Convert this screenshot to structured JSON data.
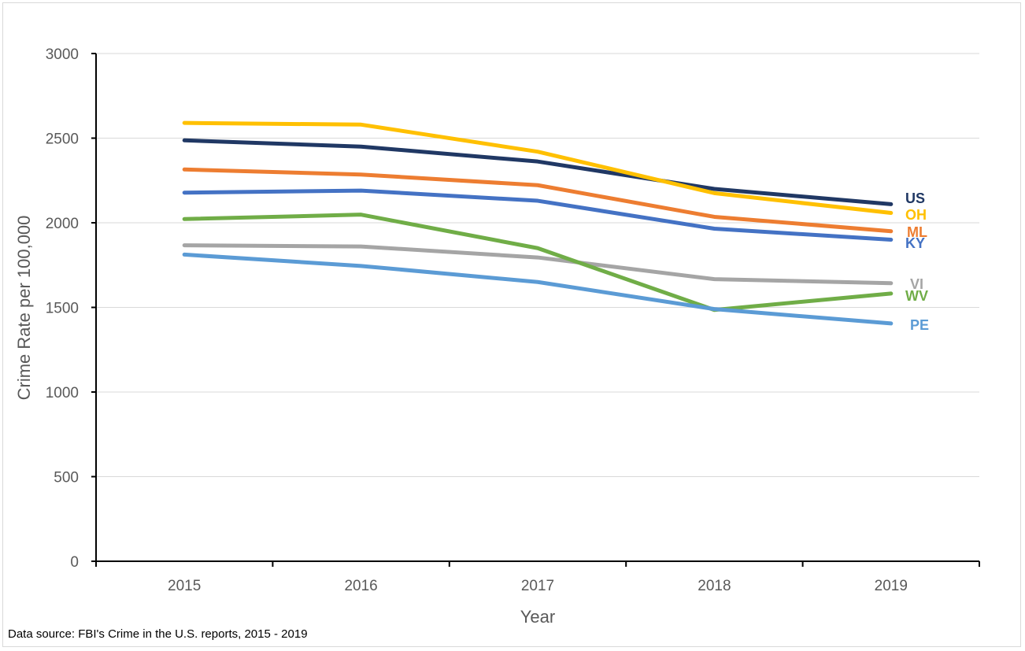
{
  "chart_data": {
    "type": "line",
    "title": "",
    "xlabel": "Year",
    "ylabel": "Crime Rate per 100,000",
    "x": [
      "2015",
      "2016",
      "2017",
      "2018",
      "2019"
    ],
    "ylim": [
      0,
      3000
    ],
    "yticks": [
      "0",
      "500",
      "1000",
      "1500",
      "2000",
      "2500",
      "3000"
    ],
    "grid": "horizontal",
    "legend": "none (series labeled at line ends)",
    "series": [
      {
        "name": "US",
        "color": "#203864",
        "values": [
          2487,
          2450,
          2362,
          2200,
          2110
        ]
      },
      {
        "name": "OH",
        "color": "#FFC000",
        "values": [
          2590,
          2580,
          2420,
          2175,
          2058
        ]
      },
      {
        "name": "ML",
        "color": "#ED7D31",
        "values": [
          2315,
          2285,
          2222,
          2035,
          1950
        ]
      },
      {
        "name": "KY",
        "color": "#4472C4",
        "values": [
          2178,
          2190,
          2130,
          1965,
          1900
        ]
      },
      {
        "name": "VI",
        "color": "#A5A5A5",
        "values": [
          1867,
          1860,
          1795,
          1667,
          1643
        ]
      },
      {
        "name": "WV",
        "color": "#70AD47",
        "values": [
          2022,
          2048,
          1850,
          1485,
          1582
        ]
      },
      {
        "name": "PE",
        "color": "#5B9BD5",
        "values": [
          1812,
          1745,
          1650,
          1490,
          1405
        ]
      }
    ]
  },
  "footer": {
    "source": "Data source: FBI's Crime in the U.S. reports, 2015 - 2019"
  }
}
